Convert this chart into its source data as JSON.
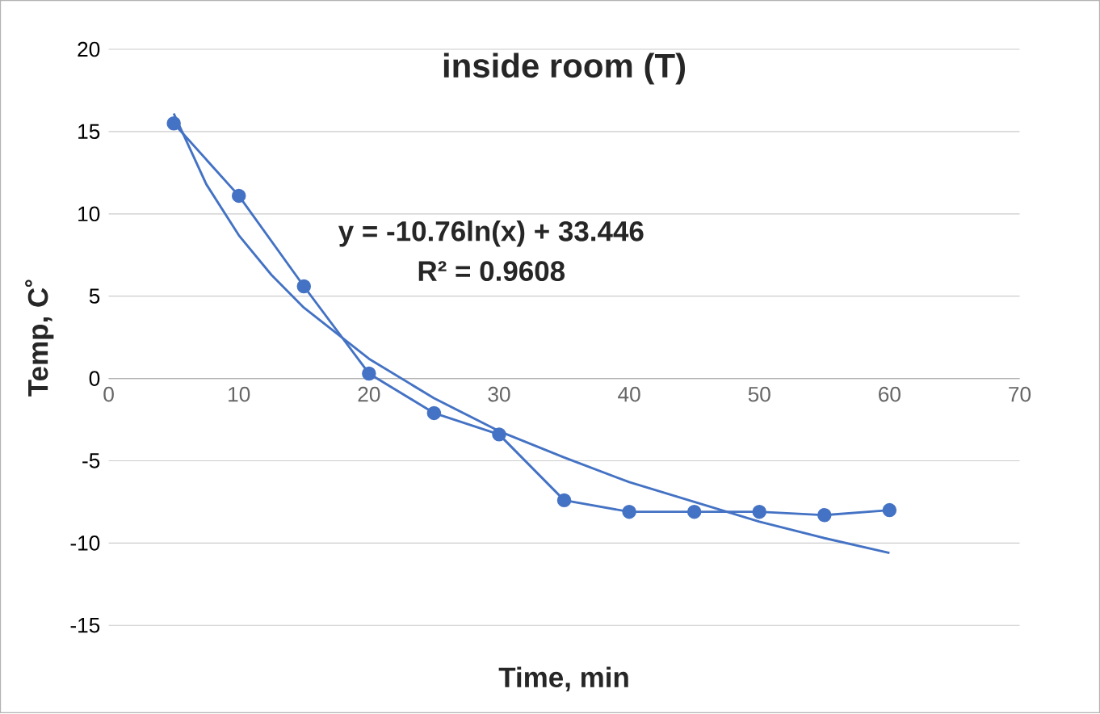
{
  "chart_data": {
    "type": "line",
    "title": "inside room  (T)",
    "xlabel": "Time, min",
    "ylabel": "Temp, C˚",
    "xlim": [
      0,
      70
    ],
    "xticks": [
      0,
      10,
      20,
      30,
      40,
      50,
      60,
      70
    ],
    "ylim": [
      -15,
      20
    ],
    "yticks": [
      -15,
      -10,
      -5,
      0,
      5,
      10,
      15,
      20
    ],
    "grid": "y",
    "annotations": [
      "y = -10.76ln(x) + 33.446",
      "R² = 0.9608"
    ],
    "series": [
      {
        "color": "#4472c4",
        "marker": "circle",
        "x": [
          5,
          10,
          15,
          20,
          25,
          30,
          35,
          40,
          45,
          50,
          55,
          60
        ],
        "values": [
          15.5,
          11.1,
          5.6,
          0.3,
          -2.1,
          -3.4,
          -7.4,
          -8.1,
          -8.1,
          -8.1,
          -8.3,
          -8.0
        ]
      },
      {
        "color": "#4472c4",
        "marker": "none",
        "x": [
          5,
          7.5,
          10,
          12.5,
          15,
          20,
          25,
          30,
          35,
          40,
          45,
          50,
          55,
          60
        ],
        "values": [
          16.1,
          11.8,
          8.7,
          6.3,
          4.3,
          1.2,
          -1.2,
          -3.2,
          -4.8,
          -6.3,
          -7.5,
          -8.7,
          -9.7,
          -10.6
        ]
      }
    ]
  }
}
